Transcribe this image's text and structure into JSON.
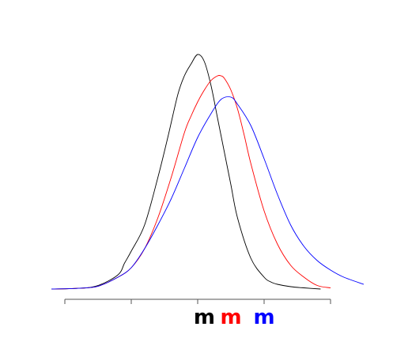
{
  "chart_data": {
    "type": "line",
    "title": "",
    "xlabel": "",
    "ylabel": "",
    "grid": false,
    "legend": "none",
    "xlim": [
      -2.5,
      2.5
    ],
    "ylim": [
      0,
      1.0
    ],
    "x_ticks": [
      -2,
      -1,
      0,
      1,
      2
    ],
    "tick_labels": [
      {
        "x": 0.1,
        "text": "m",
        "color": "#000000"
      },
      {
        "x": 0.5,
        "text": "m",
        "color": "#ff0000"
      },
      {
        "x": 1.0,
        "text": "m",
        "color": "#0000ff"
      }
    ],
    "series": [
      {
        "color": "#000000",
        "x": [
          -2.2,
          -1.8,
          -1.5,
          -1.2,
          -1.1,
          -1.0,
          -0.8,
          -0.6,
          -0.45,
          -0.3,
          -0.2,
          -0.1,
          0.0,
          0.1,
          0.2,
          0.3,
          0.4,
          0.5,
          0.6,
          0.8,
          1.0,
          1.1,
          1.2,
          1.4,
          1.6,
          1.85
        ],
        "y": [
          0.0,
          0.003,
          0.015,
          0.06,
          0.11,
          0.16,
          0.27,
          0.47,
          0.64,
          0.82,
          0.9,
          0.95,
          0.99,
          0.96,
          0.86,
          0.72,
          0.58,
          0.44,
          0.3,
          0.13,
          0.05,
          0.03,
          0.02,
          0.01,
          0.005,
          0.0
        ]
      },
      {
        "color": "#ff0000",
        "x": [
          -2.2,
          -1.8,
          -1.5,
          -1.2,
          -1.0,
          -0.8,
          -0.6,
          -0.4,
          -0.2,
          -0.1,
          0.0,
          0.1,
          0.2,
          0.3,
          0.35,
          0.4,
          0.5,
          0.6,
          0.7,
          0.8,
          1.0,
          1.2,
          1.4,
          1.6,
          1.8,
          2.0
        ],
        "y": [
          0.0,
          0.003,
          0.012,
          0.05,
          0.09,
          0.17,
          0.3,
          0.47,
          0.66,
          0.73,
          0.79,
          0.84,
          0.88,
          0.9,
          0.9,
          0.89,
          0.84,
          0.76,
          0.65,
          0.53,
          0.33,
          0.19,
          0.1,
          0.05,
          0.015,
          0.005
        ]
      },
      {
        "color": "#0000ff",
        "x": [
          -2.2,
          -1.8,
          -1.5,
          -1.2,
          -1.0,
          -0.8,
          -0.6,
          -0.4,
          -0.2,
          0.0,
          0.2,
          0.35,
          0.5,
          0.6,
          0.8,
          1.0,
          1.2,
          1.4,
          1.6,
          1.8,
          2.0,
          2.2,
          2.5
        ],
        "y": [
          0.0,
          0.003,
          0.012,
          0.05,
          0.09,
          0.17,
          0.27,
          0.38,
          0.51,
          0.64,
          0.74,
          0.8,
          0.81,
          0.78,
          0.69,
          0.55,
          0.4,
          0.27,
          0.18,
          0.12,
          0.08,
          0.05,
          0.02
        ]
      }
    ]
  }
}
